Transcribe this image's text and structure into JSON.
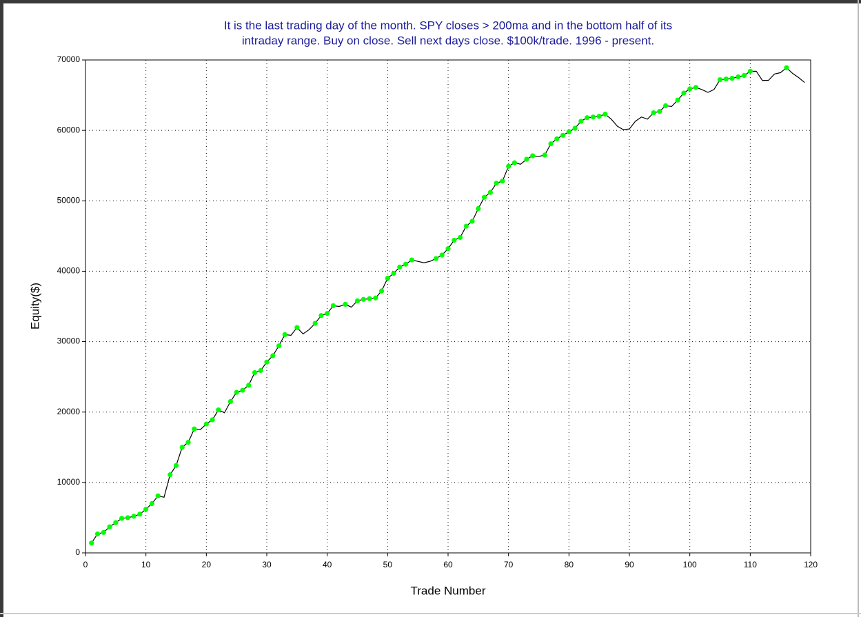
{
  "chart_data": {
    "type": "line",
    "title": [
      "It is the last trading day of the month. SPY closes > 200ma and in the bottom half of its",
      "intraday range. Buy on close. Sell next days close. $100k/trade. 1996 - present."
    ],
    "xlabel": "Trade Number",
    "ylabel": "Equity($)",
    "x": [
      1,
      2,
      3,
      4,
      5,
      6,
      7,
      8,
      9,
      10,
      11,
      12,
      13,
      14,
      15,
      16,
      17,
      18,
      19,
      20,
      21,
      22,
      23,
      24,
      25,
      26,
      27,
      28,
      29,
      30,
      31,
      32,
      33,
      34,
      35,
      36,
      37,
      38,
      39,
      40,
      41,
      42,
      43,
      44,
      45,
      46,
      47,
      48,
      49,
      50,
      51,
      52,
      53,
      54,
      55,
      56,
      57,
      58,
      59,
      60,
      61,
      62,
      63,
      64,
      65,
      66,
      67,
      68,
      69,
      70,
      71,
      72,
      73,
      74,
      75,
      76,
      77,
      78,
      79,
      80,
      81,
      82,
      83,
      84,
      85,
      86,
      87,
      88,
      89,
      90,
      91,
      92,
      93,
      94,
      95,
      96,
      97,
      98,
      99,
      100,
      101,
      102,
      103,
      104,
      105,
      106,
      107,
      108,
      109,
      110,
      111,
      112,
      113,
      114,
      115,
      116,
      117,
      118,
      119
    ],
    "series": [
      {
        "name": "Equity",
        "color": "#000000",
        "marker_color": "#00ff00",
        "values": [
          1400,
          2700,
          2900,
          3700,
          4300,
          4900,
          5000,
          5200,
          5500,
          6200,
          7000,
          8100,
          7900,
          11100,
          12400,
          15000,
          15700,
          17600,
          17500,
          18300,
          18900,
          20300,
          19900,
          21500,
          22800,
          23100,
          23800,
          25600,
          25900,
          27100,
          28000,
          29400,
          31000,
          30900,
          32000,
          31100,
          31700,
          32600,
          33700,
          34000,
          35100,
          35000,
          35300,
          34900,
          35800,
          36000,
          36100,
          36200,
          37200,
          39000,
          39700,
          40600,
          41000,
          41600,
          41400,
          41200,
          41400,
          41800,
          42300,
          43200,
          44400,
          44800,
          46400,
          47100,
          48900,
          50500,
          51200,
          52500,
          52800,
          54900,
          55400,
          55200,
          55900,
          56400,
          56300,
          56500,
          58100,
          58800,
          59300,
          59800,
          60300,
          61300,
          61800,
          61900,
          62000,
          62300,
          61600,
          60600,
          60100,
          60200,
          61300,
          61900,
          61600,
          62500,
          62700,
          63500,
          63400,
          64300,
          65300,
          65900,
          66100,
          65800,
          65400,
          65800,
          67200,
          67300,
          67400,
          67600,
          67800,
          68400,
          68400,
          67100,
          67100,
          68000,
          68200,
          68900,
          68100,
          67500,
          66800
        ]
      }
    ],
    "xlim": [
      0,
      120
    ],
    "xticks": [
      0,
      10,
      20,
      30,
      40,
      50,
      60,
      70,
      80,
      90,
      100,
      110,
      120
    ],
    "ylim": [
      0,
      70000
    ],
    "yticks": [
      0,
      10000,
      20000,
      30000,
      40000,
      50000,
      60000,
      70000
    ],
    "grid": true
  }
}
